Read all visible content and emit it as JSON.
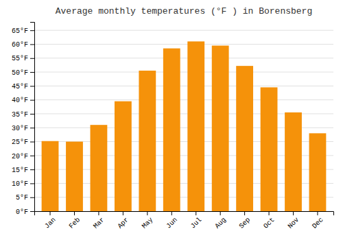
{
  "chart_data": {
    "type": "bar",
    "title": "Average monthly temperatures (°F ) in Borensberg",
    "categories": [
      "Jan",
      "Feb",
      "Mar",
      "Apr",
      "May",
      "Jun",
      "Jul",
      "Aug",
      "Sep",
      "Oct",
      "Nov",
      "Dec"
    ],
    "values": [
      25.2,
      25.0,
      31.0,
      39.5,
      50.5,
      58.5,
      61.0,
      59.5,
      52.2,
      44.5,
      35.5,
      28.0
    ],
    "color": "#F5920A",
    "ylim": [
      0,
      68
    ],
    "yticks": [
      {
        "value": 0,
        "label": "0°F"
      },
      {
        "value": 5,
        "label": "5°F"
      },
      {
        "value": 10,
        "label": "10°F"
      },
      {
        "value": 15,
        "label": "15°F"
      },
      {
        "value": 20,
        "label": "20°F"
      },
      {
        "value": 25,
        "label": "25°F"
      },
      {
        "value": 30,
        "label": "30°F"
      },
      {
        "value": 35,
        "label": "35°F"
      },
      {
        "value": 40,
        "label": "40°F"
      },
      {
        "value": 45,
        "label": "45°F"
      },
      {
        "value": 50,
        "label": "50°F"
      },
      {
        "value": 55,
        "label": "55°F"
      },
      {
        "value": 60,
        "label": "60°F"
      },
      {
        "value": 65,
        "label": "65°F"
      }
    ],
    "grid": true
  }
}
